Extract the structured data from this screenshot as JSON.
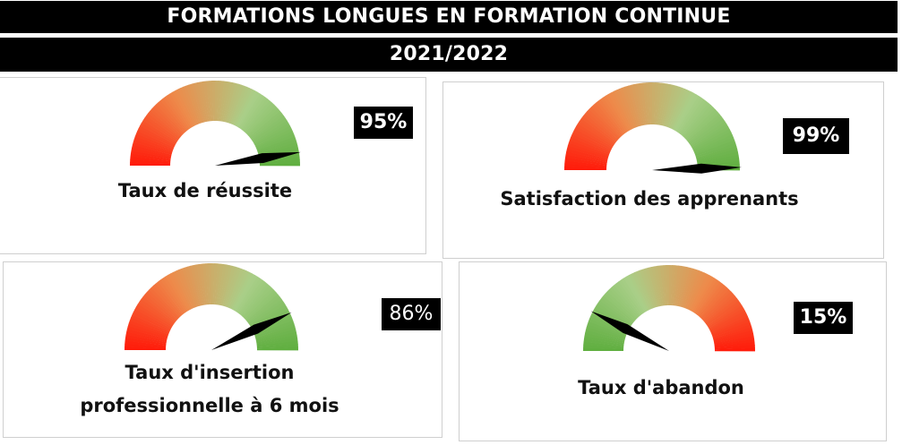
{
  "header": {
    "title": "FORMATIONS LONGUES EN FORMATION CONTINUE",
    "year": "2021/2022"
  },
  "chart_data": [
    {
      "type": "gauge",
      "title": "Taux de réussite",
      "value": 95,
      "value_label": "95%",
      "range": [
        0,
        100
      ],
      "color_scale": "red-to-green"
    },
    {
      "type": "gauge",
      "title": "Satisfaction des apprenants",
      "value": 99,
      "value_label": "99%",
      "range": [
        0,
        100
      ],
      "color_scale": "red-to-green"
    },
    {
      "type": "gauge",
      "title_lines": [
        "Taux d'insertion",
        "professionnelle à 6 mois"
      ],
      "value": 86,
      "value_label": "86%",
      "range": [
        0,
        100
      ],
      "color_scale": "red-to-green"
    },
    {
      "type": "gauge",
      "title": "Taux d'abandon",
      "value": 15,
      "value_label": "15%",
      "range": [
        0,
        100
      ],
      "color_scale": "green-to-red"
    }
  ],
  "colors": {
    "red": "#ff1a0a",
    "orange": "#ee8a4a",
    "light_green": "#a9cf88",
    "green": "#5fae3f",
    "needle": "#000000"
  }
}
